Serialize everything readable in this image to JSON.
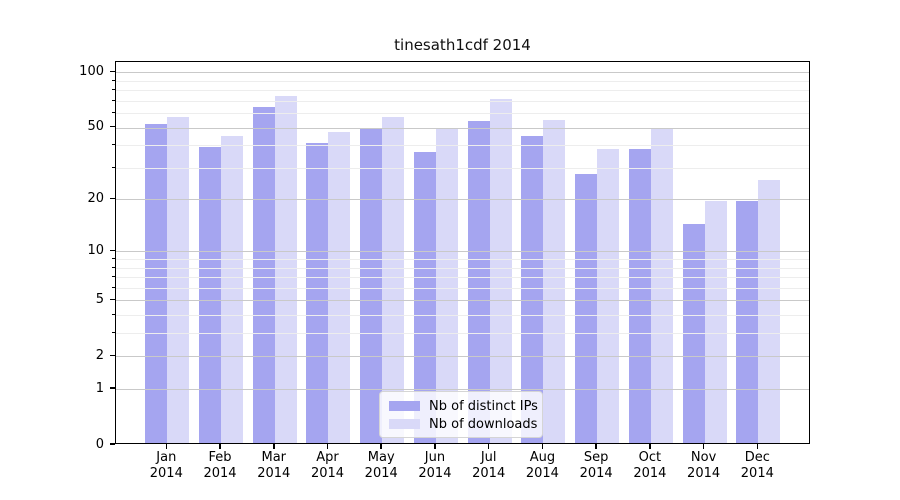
{
  "chart_data": {
    "type": "bar",
    "title": "tinesath1cdf 2014",
    "categories": [
      "Jan",
      "Feb",
      "Mar",
      "Apr",
      "May",
      "Jun",
      "Jul",
      "Aug",
      "Sep",
      "Oct",
      "Nov",
      "Dec"
    ],
    "category_year": "2014",
    "series": [
      {
        "name": "Nb of distinct IPs",
        "color": "#a5a5f0",
        "values": [
          51,
          38,
          63,
          40,
          48,
          36,
          53,
          44,
          27,
          37,
          14,
          19
        ]
      },
      {
        "name": "Nb of downloads",
        "color": "#d9d9f8",
        "values": [
          56,
          44,
          73,
          46,
          56,
          48,
          70,
          54,
          37,
          48,
          19,
          25
        ]
      }
    ],
    "xlabel": "",
    "ylabel": "",
    "yscale": "log1p",
    "ylim": [
      0,
      114
    ],
    "y_major_ticks": [
      0,
      1,
      2,
      5,
      10,
      20,
      50,
      100
    ],
    "y_minor_ticks": [
      3,
      4,
      6,
      7,
      8,
      9,
      30,
      40,
      60,
      70,
      80,
      90
    ],
    "grid": "on",
    "grid_above_bars": true,
    "legend_position": "lower center"
  },
  "colors": {
    "major_grid": "#c9c9c9",
    "minor_grid": "#ededed",
    "axis_frame": "#000000",
    "background": "#ffffff"
  }
}
